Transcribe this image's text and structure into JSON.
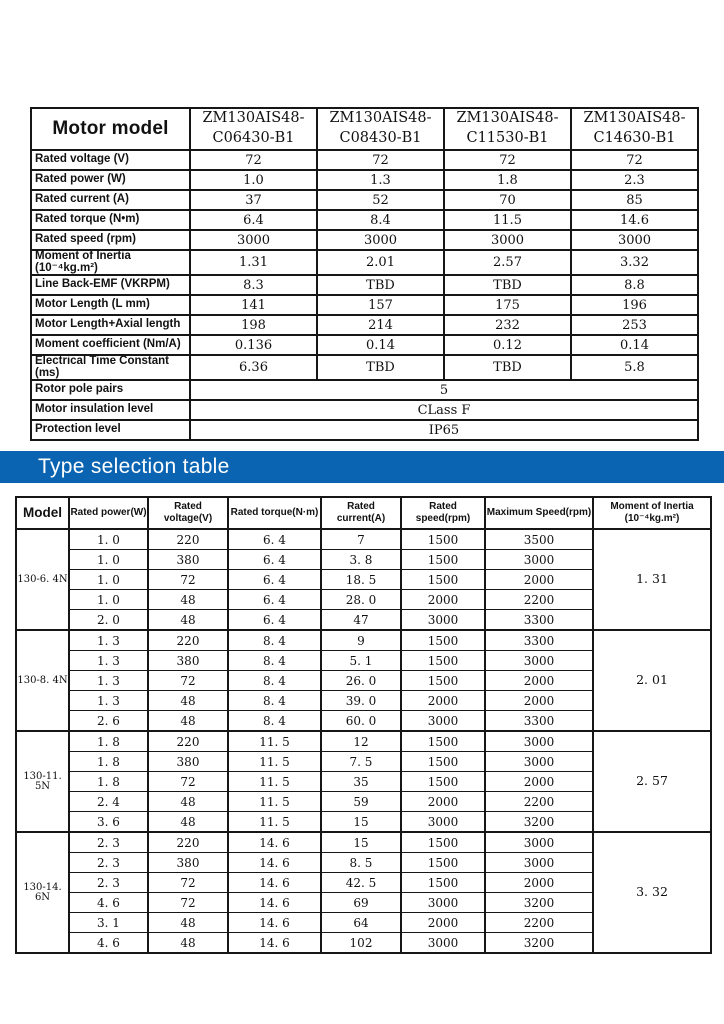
{
  "banner": {
    "title": "Type selection table",
    "bg_color": "#0a64b1",
    "text_color": "#ffffff"
  },
  "spec_table": {
    "corner_label": "Motor model",
    "models": [
      "ZM130AIS48-\nC06430-B1",
      "ZM130AIS48-\nC08430-B1",
      "ZM130AIS48-\nC11530-B1",
      "ZM130AIS48-\nC14630-B1"
    ],
    "rows": [
      {
        "label": "Rated voltage (V)",
        "values": [
          "72",
          "72",
          "72",
          "72"
        ]
      },
      {
        "label": "Rated power (W)",
        "values": [
          "1.0",
          "1.3",
          "1.8",
          "2.3"
        ]
      },
      {
        "label": "Rated current (A)",
        "values": [
          "37",
          "52",
          "70",
          "85"
        ]
      },
      {
        "label": "Rated torque (N•m)",
        "values": [
          "6.4",
          "8.4",
          "11.5",
          "14.6"
        ]
      },
      {
        "label": "Rated speed (rpm)",
        "values": [
          "3000",
          "3000",
          "3000",
          "3000"
        ]
      },
      {
        "label": "Moment of Inertia (10⁻⁴kg.m²)",
        "values": [
          "1.31",
          "2.01",
          "2.57",
          "3.32"
        ]
      },
      {
        "label": "Line Back-EMF (VKRPM)",
        "values": [
          "8.3",
          "TBD",
          "TBD",
          "8.8"
        ]
      },
      {
        "label": "Motor Length (L mm)",
        "values": [
          "141",
          "157",
          "175",
          "196"
        ]
      },
      {
        "label": "Motor Length+Axial length",
        "values": [
          "198",
          "214",
          "232",
          "253"
        ]
      },
      {
        "label": "Moment coefficient (Nm/A)",
        "values": [
          "0.136",
          "0.14",
          "0.12",
          "0.14"
        ]
      },
      {
        "label": "Electrical Time Constant (ms)",
        "values": [
          "6.36",
          "TBD",
          "TBD",
          "5.8"
        ]
      }
    ],
    "span_rows": [
      {
        "label": "Rotor pole pairs",
        "value": "5"
      },
      {
        "label": "Motor insulation level",
        "value": "CLass F"
      },
      {
        "label": "Protection level",
        "value": "IP65"
      }
    ]
  },
  "selection_table": {
    "headers": [
      "Model",
      "Rated power(W)",
      "Rated voltage(V)",
      "Rated torque(N·m)",
      "Rated current(A)",
      "Rated speed(rpm)",
      "Maximum Speed(rpm)",
      "Moment of Inertia\n(10⁻⁴kg.m²)"
    ],
    "groups": [
      {
        "model": "130-6. 4N",
        "inertia": "1. 31",
        "rows": [
          [
            "1. 0",
            "220",
            "6. 4",
            "7",
            "1500",
            "3500"
          ],
          [
            "1. 0",
            "380",
            "6. 4",
            "3. 8",
            "1500",
            "3000"
          ],
          [
            "1. 0",
            "72",
            "6. 4",
            "18. 5",
            "1500",
            "2000"
          ],
          [
            "1. 0",
            "48",
            "6. 4",
            "28. 0",
            "2000",
            "2200"
          ],
          [
            "2. 0",
            "48",
            "6. 4",
            "47",
            "3000",
            "3300"
          ]
        ]
      },
      {
        "model": "130-8. 4N",
        "inertia": "2. 01",
        "rows": [
          [
            "1. 3",
            "220",
            "8. 4",
            "9",
            "1500",
            "3300"
          ],
          [
            "1. 3",
            "380",
            "8. 4",
            "5. 1",
            "1500",
            "3000"
          ],
          [
            "1. 3",
            "72",
            "8. 4",
            "26. 0",
            "1500",
            "2000"
          ],
          [
            "1. 3",
            "48",
            "8. 4",
            "39. 0",
            "2000",
            "2000"
          ],
          [
            "2. 6",
            "48",
            "8. 4",
            "60. 0",
            "3000",
            "3300"
          ]
        ]
      },
      {
        "model": "130-11. 5N",
        "inertia": "2. 57",
        "rows": [
          [
            "1. 8",
            "220",
            "11. 5",
            "12",
            "1500",
            "3000"
          ],
          [
            "1. 8",
            "380",
            "11. 5",
            "7. 5",
            "1500",
            "3000"
          ],
          [
            "1. 8",
            "72",
            "11. 5",
            "35",
            "1500",
            "2000"
          ],
          [
            "2. 4",
            "48",
            "11. 5",
            "59",
            "2000",
            "2200"
          ],
          [
            "3. 6",
            "48",
            "11. 5",
            "15",
            "3000",
            "3200"
          ]
        ]
      },
      {
        "model": "130-14. 6N",
        "inertia": "3. 32",
        "rows": [
          [
            "2. 3",
            "220",
            "14. 6",
            "15",
            "1500",
            "3000"
          ],
          [
            "2. 3",
            "380",
            "14. 6",
            "8. 5",
            "1500",
            "3000"
          ],
          [
            "2. 3",
            "72",
            "14. 6",
            "42. 5",
            "1500",
            "2000"
          ],
          [
            "4. 6",
            "72",
            "14. 6",
            "69",
            "3000",
            "3200"
          ],
          [
            "3. 1",
            "48",
            "14. 6",
            "64",
            "2000",
            "2200"
          ],
          [
            "4. 6",
            "48",
            "14. 6",
            "102",
            "3000",
            "3200"
          ]
        ]
      }
    ]
  }
}
